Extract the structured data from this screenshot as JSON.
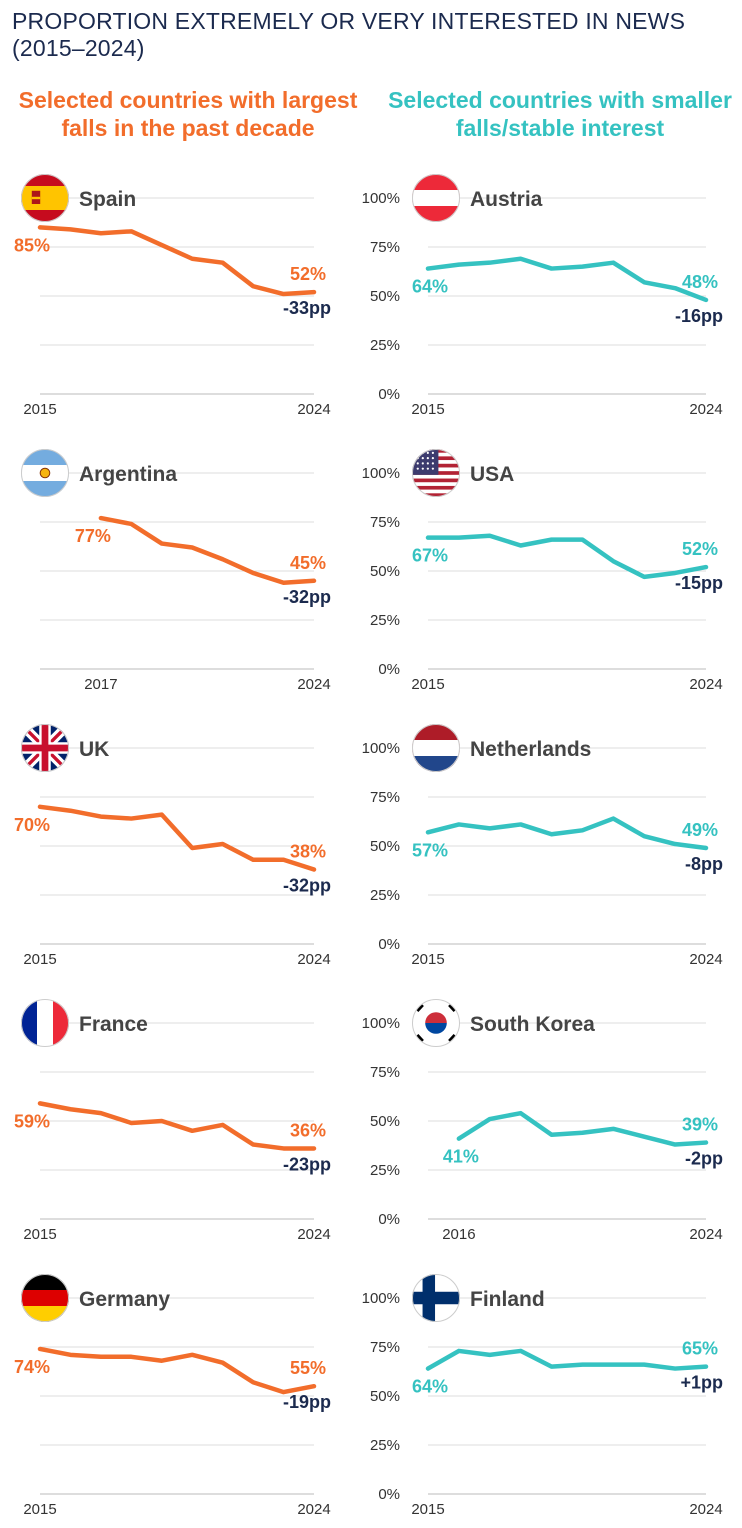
{
  "title": "PROPORTION EXTREMELY OR VERY INTERESTED IN NEWS (2015–2024)",
  "columns": {
    "left": {
      "heading": "Selected countries with largest falls in the past decade",
      "color": "#f26d2b"
    },
    "right": {
      "heading": "Selected countries with smaller falls/stable interest",
      "color": "#35c2c1"
    }
  },
  "colors": {
    "change_label": "#1b2a4e",
    "grid": "#dddddd",
    "axis_text": "#333333",
    "country_text": "#444444"
  },
  "chart_data": [
    {
      "type": "line",
      "column": "left",
      "country": "Spain",
      "flag_icon": "spain-flag-icon",
      "x": [
        2015,
        2016,
        2017,
        2018,
        2019,
        2020,
        2021,
        2022,
        2023,
        2024
      ],
      "values": [
        85,
        84,
        82,
        83,
        76,
        69,
        67,
        55,
        51,
        52
      ],
      "start_label": "85%",
      "end_label": "52%",
      "change_label": "-33pp",
      "x_ticks": [
        "2015",
        "2024"
      ],
      "ylim": [
        0,
        100
      ]
    },
    {
      "type": "line",
      "column": "right",
      "country": "Austria",
      "flag_icon": "austria-flag-icon",
      "x": [
        2015,
        2016,
        2017,
        2018,
        2019,
        2020,
        2021,
        2022,
        2023,
        2024
      ],
      "values": [
        64,
        66,
        67,
        69,
        64,
        65,
        67,
        57,
        54,
        48
      ],
      "start_label": "64%",
      "end_label": "48%",
      "change_label": "-16pp",
      "x_ticks": [
        "2015",
        "2024"
      ],
      "y_ticks": [
        "0%",
        "25%",
        "50%",
        "75%",
        "100%"
      ],
      "ylim": [
        0,
        100
      ]
    },
    {
      "type": "line",
      "column": "left",
      "country": "Argentina",
      "flag_icon": "argentina-flag-icon",
      "x": [
        2017,
        2018,
        2019,
        2020,
        2021,
        2022,
        2023,
        2024
      ],
      "values": [
        77,
        74,
        64,
        62,
        56,
        49,
        44,
        45
      ],
      "start_label": "77%",
      "end_label": "45%",
      "change_label": "-32pp",
      "x_ticks": [
        "2017",
        "2024"
      ],
      "ylim": [
        0,
        100
      ]
    },
    {
      "type": "line",
      "column": "right",
      "country": "USA",
      "flag_icon": "usa-flag-icon",
      "x": [
        2015,
        2016,
        2017,
        2018,
        2019,
        2020,
        2021,
        2022,
        2023,
        2024
      ],
      "values": [
        67,
        67,
        68,
        63,
        66,
        66,
        55,
        47,
        49,
        52
      ],
      "start_label": "67%",
      "end_label": "52%",
      "change_label": "-15pp",
      "x_ticks": [
        "2015",
        "2024"
      ],
      "y_ticks": [
        "0%",
        "25%",
        "50%",
        "75%",
        "100%"
      ],
      "ylim": [
        0,
        100
      ]
    },
    {
      "type": "line",
      "column": "left",
      "country": "UK",
      "flag_icon": "uk-flag-icon",
      "x": [
        2015,
        2016,
        2017,
        2018,
        2019,
        2020,
        2021,
        2022,
        2023,
        2024
      ],
      "values": [
        70,
        68,
        65,
        64,
        66,
        49,
        51,
        43,
        43,
        38
      ],
      "start_label": "70%",
      "end_label": "38%",
      "change_label": "-32pp",
      "x_ticks": [
        "2015",
        "2024"
      ],
      "ylim": [
        0,
        100
      ]
    },
    {
      "type": "line",
      "column": "right",
      "country": "Netherlands",
      "flag_icon": "netherlands-flag-icon",
      "x": [
        2015,
        2016,
        2017,
        2018,
        2019,
        2020,
        2021,
        2022,
        2023,
        2024
      ],
      "values": [
        57,
        61,
        59,
        61,
        56,
        58,
        64,
        55,
        51,
        49
      ],
      "start_label": "57%",
      "end_label": "49%",
      "change_label": "-8pp",
      "x_ticks": [
        "2015",
        "2024"
      ],
      "y_ticks": [
        "0%",
        "25%",
        "50%",
        "75%",
        "100%"
      ],
      "ylim": [
        0,
        100
      ]
    },
    {
      "type": "line",
      "column": "left",
      "country": "France",
      "flag_icon": "france-flag-icon",
      "x": [
        2015,
        2016,
        2017,
        2018,
        2019,
        2020,
        2021,
        2022,
        2023,
        2024
      ],
      "values": [
        59,
        56,
        54,
        49,
        50,
        45,
        48,
        38,
        36,
        36
      ],
      "start_label": "59%",
      "end_label": "36%",
      "change_label": "-23pp",
      "x_ticks": [
        "2015",
        "2024"
      ],
      "ylim": [
        0,
        100
      ]
    },
    {
      "type": "line",
      "column": "right",
      "country": "South Korea",
      "flag_icon": "south-korea-flag-icon",
      "x": [
        2016,
        2017,
        2018,
        2019,
        2020,
        2021,
        2022,
        2023,
        2024
      ],
      "values": [
        41,
        51,
        54,
        43,
        44,
        46,
        42,
        38,
        39
      ],
      "start_label": "41%",
      "end_label": "39%",
      "change_label": "-2pp",
      "x_ticks": [
        "2016",
        "2024"
      ],
      "y_ticks": [
        "0%",
        "25%",
        "50%",
        "75%",
        "100%"
      ],
      "ylim": [
        0,
        100
      ]
    },
    {
      "type": "line",
      "column": "left",
      "country": "Germany",
      "flag_icon": "germany-flag-icon",
      "x": [
        2015,
        2016,
        2017,
        2018,
        2019,
        2020,
        2021,
        2022,
        2023,
        2024
      ],
      "values": [
        74,
        71,
        70,
        70,
        68,
        71,
        67,
        57,
        52,
        55
      ],
      "start_label": "74%",
      "end_label": "55%",
      "change_label": "-19pp",
      "x_ticks": [
        "2015",
        "2024"
      ],
      "ylim": [
        0,
        100
      ]
    },
    {
      "type": "line",
      "column": "right",
      "country": "Finland",
      "flag_icon": "finland-flag-icon",
      "x": [
        2015,
        2016,
        2017,
        2018,
        2019,
        2020,
        2021,
        2022,
        2023,
        2024
      ],
      "values": [
        64,
        73,
        71,
        73,
        65,
        66,
        66,
        66,
        64,
        65
      ],
      "start_label": "64%",
      "end_label": "65%",
      "change_label": "+1pp",
      "x_ticks": [
        "2015",
        "2024"
      ],
      "y_ticks": [
        "0%",
        "25%",
        "50%",
        "75%",
        "100%"
      ],
      "ylim": [
        0,
        100
      ]
    }
  ]
}
